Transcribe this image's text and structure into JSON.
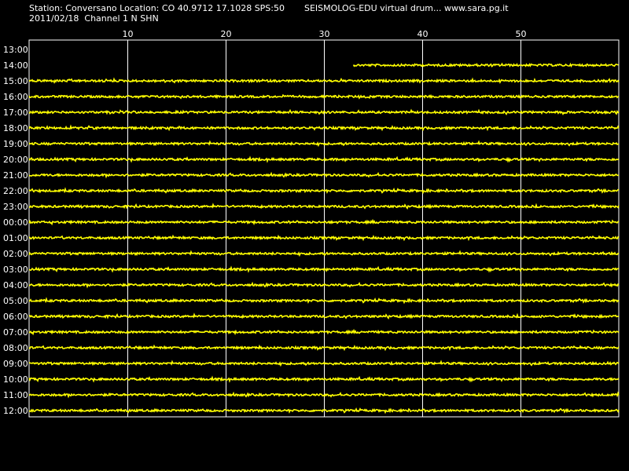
{
  "header": {
    "station_line": "Station: Conversano Location: CO 40.9712 17.1028 SPS:50",
    "title_line": "SEISMOLOG-EDU virtual drum... www.sara.pg.it",
    "date_line": "2011/02/18  Channel 1 N SHN"
  },
  "colors": {
    "background": "#000000",
    "trace": "#ffff00",
    "grid": "#ffffff",
    "text": "#ffffff"
  },
  "chart_data": {
    "type": "line",
    "title": "SEISMOLOG-EDU virtual drum... www.sara.pg.it",
    "xlabel": "",
    "ylabel": "",
    "x_ticks": [
      "10",
      "20",
      "30",
      "40",
      "50"
    ],
    "x_range": [
      0,
      60
    ],
    "grid": true,
    "rows": [
      {
        "label": "13:00",
        "start": null,
        "end": null
      },
      {
        "label": "14:00",
        "start": 33,
        "end": 60
      },
      {
        "label": "15:00",
        "start": 0,
        "end": 60
      },
      {
        "label": "16:00",
        "start": 0,
        "end": 60
      },
      {
        "label": "17:00",
        "start": 0,
        "end": 60
      },
      {
        "label": "18:00",
        "start": 0,
        "end": 60
      },
      {
        "label": "19:00",
        "start": 0,
        "end": 60
      },
      {
        "label": "20:00",
        "start": 0,
        "end": 60
      },
      {
        "label": "21:00",
        "start": 0,
        "end": 60
      },
      {
        "label": "22:00",
        "start": 0,
        "end": 60
      },
      {
        "label": "23:00",
        "start": 0,
        "end": 60
      },
      {
        "label": "00:00",
        "start": 0,
        "end": 60
      },
      {
        "label": "01:00",
        "start": 0,
        "end": 60
      },
      {
        "label": "02:00",
        "start": 0,
        "end": 60
      },
      {
        "label": "03:00",
        "start": 0,
        "end": 60
      },
      {
        "label": "04:00",
        "start": 0,
        "end": 60
      },
      {
        "label": "05:00",
        "start": 0,
        "end": 60
      },
      {
        "label": "06:00",
        "start": 0,
        "end": 60
      },
      {
        "label": "07:00",
        "start": 0,
        "end": 60
      },
      {
        "label": "08:00",
        "start": 0,
        "end": 60
      },
      {
        "label": "09:00",
        "start": 0,
        "end": 60
      },
      {
        "label": "10:00",
        "start": 0,
        "end": 60
      },
      {
        "label": "11:00",
        "start": 0,
        "end": 60
      },
      {
        "label": "12:00",
        "start": 0,
        "end": 60
      }
    ]
  }
}
